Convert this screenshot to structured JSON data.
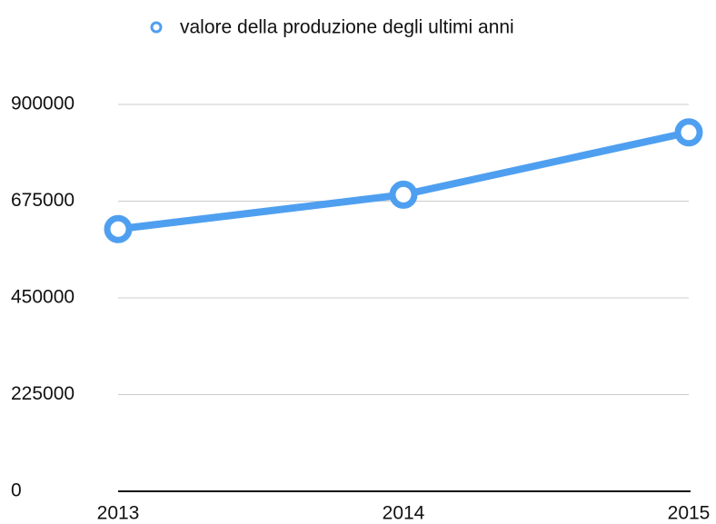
{
  "chart_data": {
    "type": "line",
    "categories": [
      "2013",
      "2014",
      "2015"
    ],
    "series": [
      {
        "name": "valore della produzione degli ultimi anni",
        "color": "#4f9ff0",
        "values": [
          610000,
          690000,
          835000
        ]
      }
    ],
    "ylim": [
      0,
      900000
    ],
    "yticks": [
      0,
      225000,
      450000,
      675000,
      900000
    ],
    "grid": true,
    "legend": "top"
  }
}
